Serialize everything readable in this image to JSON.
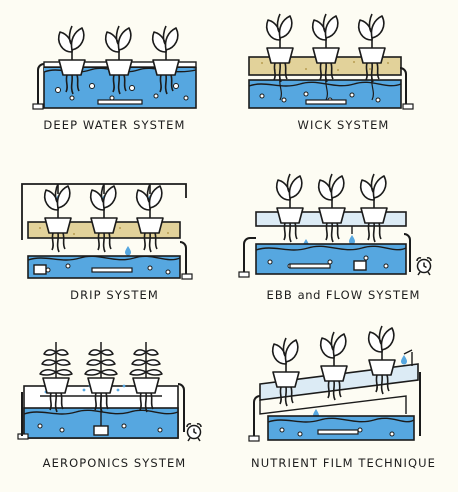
{
  "colors": {
    "water": "#56a7e0",
    "substrate": "#e2d29a",
    "nft_channel": "#dcebf5",
    "outline": "#1b1b1b",
    "paper": "#fdfcf3"
  },
  "panels": [
    {
      "id": "deep-water",
      "label": "DEEP WATER SYSTEM"
    },
    {
      "id": "wick",
      "label": "WICK SYSTEM"
    },
    {
      "id": "drip",
      "label": "DRIP SYSTEM"
    },
    {
      "id": "ebb-flow",
      "label_parts": [
        "EBB",
        "and",
        "FLOW SYSTEM"
      ]
    },
    {
      "id": "aeroponics",
      "label": "AEROPONICS SYSTEM"
    },
    {
      "id": "nft",
      "label": "NUTRIENT FILM TECHNIQUE"
    }
  ],
  "icons": [
    "plant-icon",
    "water-drop-icon",
    "alarm-clock-icon",
    "pump-icon",
    "pipe-icon"
  ]
}
